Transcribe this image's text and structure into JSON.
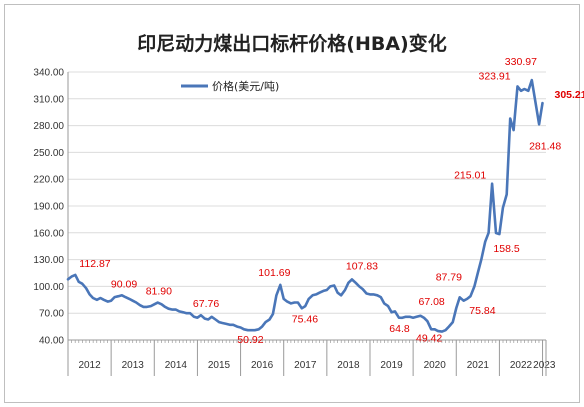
{
  "chart_data": {
    "type": "line",
    "title": "印尼动力煤出口标杆价格(HBA)变化",
    "series": [
      {
        "name": "价格(美元/吨)",
        "color": "#4a76b8",
        "values": [
          [
            2012.0,
            108
          ],
          [
            2012.08,
            111
          ],
          [
            2012.17,
            112.87
          ],
          [
            2012.25,
            105
          ],
          [
            2012.33,
            103
          ],
          [
            2012.42,
            98
          ],
          [
            2012.5,
            91
          ],
          [
            2012.58,
            87
          ],
          [
            2012.67,
            85
          ],
          [
            2012.75,
            87
          ],
          [
            2012.83,
            85
          ],
          [
            2012.92,
            83
          ],
          [
            2013.0,
            84
          ],
          [
            2013.08,
            88
          ],
          [
            2013.17,
            89
          ],
          [
            2013.25,
            90.09
          ],
          [
            2013.33,
            88
          ],
          [
            2013.42,
            86
          ],
          [
            2013.5,
            84
          ],
          [
            2013.58,
            82
          ],
          [
            2013.67,
            79
          ],
          [
            2013.75,
            77
          ],
          [
            2013.83,
            77
          ],
          [
            2013.92,
            78
          ],
          [
            2014.0,
            80
          ],
          [
            2014.08,
            81.9
          ],
          [
            2014.17,
            80
          ],
          [
            2014.25,
            77
          ],
          [
            2014.33,
            75
          ],
          [
            2014.42,
            74
          ],
          [
            2014.5,
            74
          ],
          [
            2014.58,
            72
          ],
          [
            2014.67,
            71
          ],
          [
            2014.75,
            70
          ],
          [
            2014.83,
            70
          ],
          [
            2014.92,
            66
          ],
          [
            2015.0,
            65
          ],
          [
            2015.08,
            67.76
          ],
          [
            2015.17,
            64
          ],
          [
            2015.25,
            63
          ],
          [
            2015.33,
            66
          ],
          [
            2015.42,
            63
          ],
          [
            2015.5,
            60
          ],
          [
            2015.58,
            59
          ],
          [
            2015.67,
            58
          ],
          [
            2015.75,
            57
          ],
          [
            2015.83,
            57
          ],
          [
            2015.92,
            55
          ],
          [
            2016.0,
            54
          ],
          [
            2016.08,
            52
          ],
          [
            2016.17,
            51
          ],
          [
            2016.25,
            50.92
          ],
          [
            2016.33,
            51
          ],
          [
            2016.42,
            52
          ],
          [
            2016.5,
            55
          ],
          [
            2016.58,
            60
          ],
          [
            2016.67,
            63
          ],
          [
            2016.75,
            69
          ],
          [
            2016.83,
            90
          ],
          [
            2016.92,
            101.69
          ],
          [
            2017.0,
            86
          ],
          [
            2017.08,
            83
          ],
          [
            2017.17,
            81
          ],
          [
            2017.25,
            82
          ],
          [
            2017.33,
            82
          ],
          [
            2017.42,
            75.46
          ],
          [
            2017.5,
            78
          ],
          [
            2017.58,
            86
          ],
          [
            2017.67,
            90
          ],
          [
            2017.75,
            91
          ],
          [
            2017.83,
            93
          ],
          [
            2017.92,
            95
          ],
          [
            2018.0,
            96
          ],
          [
            2018.08,
            100
          ],
          [
            2018.17,
            101
          ],
          [
            2018.25,
            93
          ],
          [
            2018.33,
            90
          ],
          [
            2018.42,
            96
          ],
          [
            2018.5,
            104
          ],
          [
            2018.58,
            107.83
          ],
          [
            2018.67,
            104
          ],
          [
            2018.75,
            100
          ],
          [
            2018.83,
            97
          ],
          [
            2018.92,
            92
          ],
          [
            2019.0,
            91
          ],
          [
            2019.08,
            91
          ],
          [
            2019.17,
            90
          ],
          [
            2019.25,
            88
          ],
          [
            2019.33,
            81
          ],
          [
            2019.42,
            78
          ],
          [
            2019.5,
            71
          ],
          [
            2019.58,
            72
          ],
          [
            2019.67,
            65
          ],
          [
            2019.75,
            64.8
          ],
          [
            2019.83,
            66
          ],
          [
            2019.92,
            66
          ],
          [
            2020.0,
            65
          ],
          [
            2020.08,
            66
          ],
          [
            2020.17,
            67.08
          ],
          [
            2020.25,
            65
          ],
          [
            2020.33,
            61
          ],
          [
            2020.42,
            52
          ],
          [
            2020.5,
            52
          ],
          [
            2020.58,
            50
          ],
          [
            2020.67,
            49.42
          ],
          [
            2020.75,
            51
          ],
          [
            2020.83,
            55
          ],
          [
            2020.92,
            60
          ],
          [
            2021.0,
            75.84
          ],
          [
            2021.08,
            87.79
          ],
          [
            2021.17,
            84
          ],
          [
            2021.25,
            86
          ],
          [
            2021.33,
            89
          ],
          [
            2021.42,
            100
          ],
          [
            2021.5,
            115
          ],
          [
            2021.58,
            130
          ],
          [
            2021.67,
            150
          ],
          [
            2021.75,
            160
          ],
          [
            2021.83,
            215.01
          ],
          [
            2021.92,
            159.79
          ],
          [
            2022.0,
            158.5
          ],
          [
            2022.08,
            188
          ],
          [
            2022.17,
            203
          ],
          [
            2022.25,
            288
          ],
          [
            2022.33,
            275
          ],
          [
            2022.42,
            323.91
          ],
          [
            2022.5,
            319
          ],
          [
            2022.58,
            321
          ],
          [
            2022.67,
            319
          ],
          [
            2022.75,
            330.97
          ],
          [
            2022.83,
            308
          ],
          [
            2022.92,
            281.48
          ],
          [
            2023.0,
            305.21
          ]
        ]
      }
    ],
    "annotations": [
      {
        "x": 2012.17,
        "y": 112.87,
        "text": "112.87"
      },
      {
        "x": 2013.25,
        "y": 90.09,
        "text": "90.09"
      },
      {
        "x": 2014.08,
        "y": 81.9,
        "text": "81.90"
      },
      {
        "x": 2015.08,
        "y": 67.76,
        "text": "67.76"
      },
      {
        "x": 2016.25,
        "y": 50.92,
        "text": "50.92"
      },
      {
        "x": 2016.92,
        "y": 101.69,
        "text": "101.69"
      },
      {
        "x": 2017.42,
        "y": 75.46,
        "text": "75.46"
      },
      {
        "x": 2018.58,
        "y": 107.83,
        "text": "107.83"
      },
      {
        "x": 2019.75,
        "y": 64.8,
        "text": "64.8"
      },
      {
        "x": 2020.17,
        "y": 67.08,
        "text": "67.08"
      },
      {
        "x": 2020.67,
        "y": 49.42,
        "text": "49.42"
      },
      {
        "x": 2021.08,
        "y": 87.79,
        "text": "87.79"
      },
      {
        "x": 2021.0,
        "y": 75.84,
        "text": "75.84"
      },
      {
        "x": 2021.83,
        "y": 215.01,
        "text": "215.01"
      },
      {
        "x": 2022.0,
        "y": 158.5,
        "text": "158.5"
      },
      {
        "x": 2022.42,
        "y": 323.91,
        "text": "323.91"
      },
      {
        "x": 2022.75,
        "y": 330.97,
        "text": "330.97"
      },
      {
        "x": 2022.92,
        "y": 281.48,
        "text": "281.48"
      },
      {
        "x": 2023.0,
        "y": 305.21,
        "text": "305.21",
        "bold": true
      }
    ],
    "y_ticks": [
      "40.00",
      "70.00",
      "100.00",
      "130.00",
      "160.00",
      "190.00",
      "220.00",
      "250.00",
      "280.00",
      "310.00",
      "340.00"
    ],
    "ylim": [
      40,
      340
    ],
    "x_categories": [
      "2012",
      "2013",
      "2014",
      "2015",
      "2016",
      "2017",
      "2018",
      "2019",
      "2020",
      "2021",
      "2022",
      "2023"
    ],
    "xlim": [
      2012,
      2023.08
    ],
    "grid": "horizontal",
    "legend_position": "top-left"
  }
}
